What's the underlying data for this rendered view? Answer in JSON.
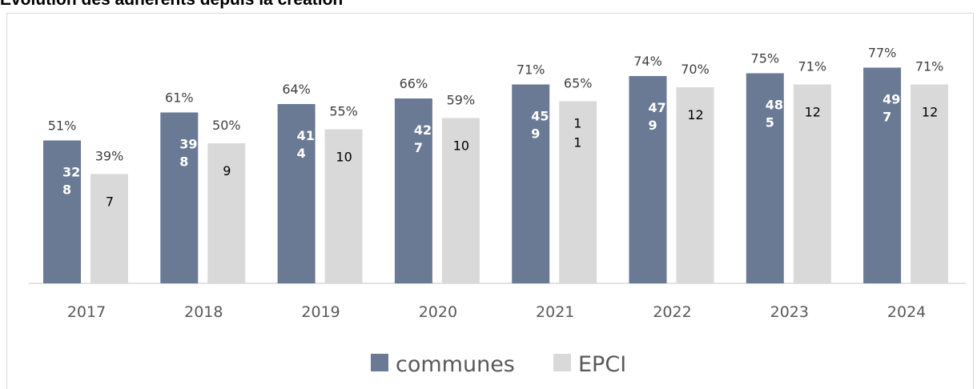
{
  "colors": {
    "communes": "#6a7a94",
    "epci": "#d9d9d9",
    "axis": "#d9d9d9"
  },
  "chart_data": {
    "type": "bar",
    "title": "Evolution des adhérents depuis la création",
    "categories": [
      "2017",
      "2018",
      "2019",
      "2020",
      "2021",
      "2022",
      "2023",
      "2024"
    ],
    "ylim": [
      0,
      100
    ],
    "legend_position": "bottom",
    "grid": false,
    "series": [
      {
        "name": "communes",
        "values": [
          51,
          61,
          64,
          66,
          71,
          74,
          75,
          77
        ],
        "labels": [
          "51%",
          "61%",
          "64%",
          "66%",
          "71%",
          "74%",
          "75%",
          "77%"
        ],
        "inner_labels": [
          [
            "32",
            "8"
          ],
          [
            "39",
            "8"
          ],
          [
            "41",
            "4"
          ],
          [
            "42",
            "7"
          ],
          [
            "45",
            "9"
          ],
          [
            "47",
            "9"
          ],
          [
            "48",
            "5"
          ],
          [
            "49",
            "7"
          ]
        ]
      },
      {
        "name": "EPCI",
        "values": [
          39,
          50,
          55,
          59,
          65,
          70,
          71,
          71
        ],
        "labels": [
          "39%",
          "50%",
          "55%",
          "59%",
          "65%",
          "70%",
          "71%",
          "71%"
        ],
        "inner_labels": [
          [
            "7"
          ],
          [
            "9"
          ],
          [
            "10"
          ],
          [
            "10"
          ],
          [
            "1",
            "1"
          ],
          [
            "12"
          ],
          [
            "12"
          ],
          [
            "12"
          ]
        ]
      }
    ]
  }
}
